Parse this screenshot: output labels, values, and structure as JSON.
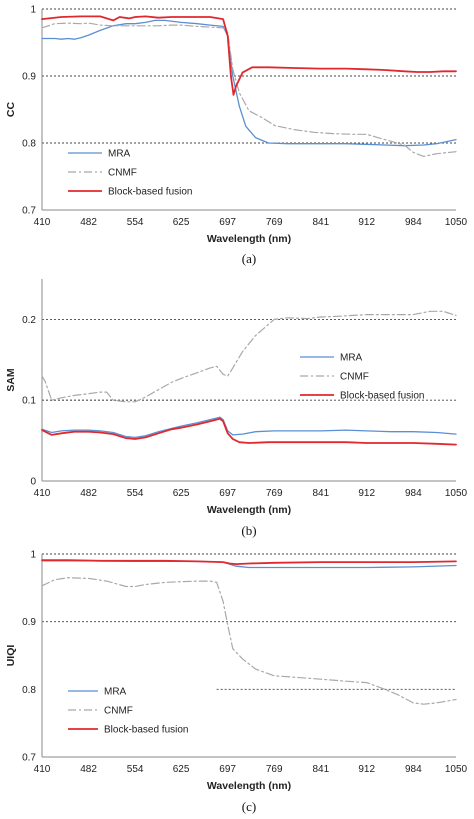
{
  "colors": {
    "mra": "#5b8fd4",
    "cnmf": "#a9a9a9",
    "block": "#e0282e",
    "grid": "#444444",
    "axis": "#888888"
  },
  "chart_data": [
    {
      "type": "line",
      "caption": "(a)",
      "ylabel": "CC",
      "xlabel": "Wavelength (nm)",
      "xlim": [
        410,
        1050
      ],
      "ylim": [
        0.7,
        1.0
      ],
      "xticks": [
        410,
        482,
        554,
        625,
        697,
        769,
        841,
        912,
        984,
        1050
      ],
      "yticks": [
        0.7,
        0.8,
        0.9,
        1.0
      ],
      "ytick_labels": [
        "0.7",
        "0.8",
        "0.9",
        "1"
      ],
      "grid_y": [
        0.8,
        0.9,
        1.0
      ],
      "legend": "lower-left",
      "series": [
        {
          "name": "MRA",
          "key": "mra",
          "dash": "",
          "width": 1.3,
          "x": [
            410,
            430,
            440,
            450,
            460,
            470,
            482,
            500,
            520,
            540,
            554,
            570,
            585,
            600,
            625,
            650,
            670,
            690,
            697,
            705,
            715,
            725,
            740,
            760,
            790,
            820,
            850,
            880,
            910,
            940,
            970,
            1000,
            1020,
            1050
          ],
          "y": [
            0.956,
            0.956,
            0.955,
            0.956,
            0.955,
            0.957,
            0.961,
            0.968,
            0.975,
            0.978,
            0.978,
            0.98,
            0.983,
            0.983,
            0.98,
            0.978,
            0.976,
            0.974,
            0.96,
            0.9,
            0.855,
            0.825,
            0.808,
            0.8,
            0.799,
            0.799,
            0.799,
            0.799,
            0.798,
            0.797,
            0.796,
            0.797,
            0.799,
            0.805
          ]
        },
        {
          "name": "CNMF",
          "key": "cnmf",
          "dash": "8,3,2,3",
          "width": 1.2,
          "x": [
            410,
            430,
            450,
            470,
            482,
            500,
            520,
            540,
            554,
            570,
            590,
            610,
            625,
            650,
            670,
            690,
            697,
            705,
            715,
            730,
            750,
            770,
            800,
            830,
            860,
            890,
            912,
            940,
            970,
            984,
            1000,
            1020,
            1050
          ],
          "y": [
            0.972,
            0.978,
            0.979,
            0.978,
            0.979,
            0.976,
            0.975,
            0.975,
            0.975,
            0.975,
            0.975,
            0.976,
            0.976,
            0.974,
            0.973,
            0.972,
            0.965,
            0.91,
            0.875,
            0.848,
            0.838,
            0.826,
            0.82,
            0.816,
            0.814,
            0.813,
            0.813,
            0.805,
            0.797,
            0.786,
            0.78,
            0.784,
            0.787
          ]
        },
        {
          "name": "Block-based  fusion",
          "key": "block",
          "dash": "",
          "width": 1.8,
          "x": [
            410,
            440,
            470,
            482,
            500,
            520,
            530,
            545,
            554,
            570,
            590,
            610,
            625,
            650,
            670,
            690,
            697,
            702,
            706,
            710,
            720,
            735,
            760,
            800,
            840,
            880,
            912,
            940,
            970,
            990,
            1010,
            1030,
            1050
          ],
          "y": [
            0.985,
            0.988,
            0.989,
            0.989,
            0.989,
            0.983,
            0.988,
            0.986,
            0.988,
            0.989,
            0.987,
            0.988,
            0.988,
            0.988,
            0.988,
            0.985,
            0.96,
            0.9,
            0.872,
            0.885,
            0.905,
            0.913,
            0.913,
            0.912,
            0.911,
            0.911,
            0.91,
            0.909,
            0.907,
            0.906,
            0.906,
            0.907,
            0.907
          ]
        }
      ]
    },
    {
      "type": "line",
      "caption": "(b)",
      "ylabel": "SAM",
      "xlabel": "Wavelength (nm)",
      "xlim": [
        410,
        1050
      ],
      "ylim": [
        0,
        0.25
      ],
      "xticks": [
        410,
        482,
        554,
        625,
        697,
        769,
        841,
        912,
        984,
        1050
      ],
      "yticks": [
        0,
        0.1,
        0.2
      ],
      "ytick_labels": [
        "0",
        "0.1",
        "0.2"
      ],
      "grid_y": [
        0.1,
        0.2
      ],
      "legend": "center-right",
      "series": [
        {
          "name": "MRA",
          "key": "mra",
          "dash": "",
          "width": 1.3,
          "x": [
            410,
            425,
            440,
            460,
            482,
            500,
            520,
            540,
            554,
            570,
            590,
            610,
            625,
            650,
            670,
            685,
            690,
            697,
            705,
            720,
            740,
            769,
            800,
            841,
            880,
            912,
            950,
            984,
            1020,
            1050
          ],
          "y": [
            0.064,
            0.06,
            0.062,
            0.063,
            0.063,
            0.062,
            0.06,
            0.055,
            0.054,
            0.056,
            0.061,
            0.065,
            0.068,
            0.072,
            0.076,
            0.079,
            0.076,
            0.062,
            0.057,
            0.058,
            0.061,
            0.062,
            0.062,
            0.062,
            0.063,
            0.062,
            0.061,
            0.061,
            0.06,
            0.058
          ]
        },
        {
          "name": "CNMF",
          "key": "cnmf",
          "dash": "8,3,2,3",
          "width": 1.2,
          "x": [
            410,
            415,
            425,
            440,
            460,
            482,
            500,
            510,
            520,
            540,
            554,
            570,
            590,
            610,
            625,
            650,
            670,
            680,
            690,
            697,
            705,
            720,
            740,
            769,
            790,
            820,
            841,
            870,
            912,
            950,
            984,
            1010,
            1030,
            1050
          ],
          "y": [
            0.13,
            0.123,
            0.1,
            0.103,
            0.106,
            0.108,
            0.11,
            0.11,
            0.1,
            0.098,
            0.098,
            0.104,
            0.113,
            0.122,
            0.127,
            0.134,
            0.14,
            0.142,
            0.132,
            0.13,
            0.14,
            0.16,
            0.18,
            0.2,
            0.202,
            0.201,
            0.203,
            0.204,
            0.206,
            0.206,
            0.206,
            0.21,
            0.21,
            0.205
          ]
        },
        {
          "name": "Block-based fusion",
          "key": "block",
          "dash": "",
          "width": 1.8,
          "x": [
            410,
            425,
            440,
            460,
            482,
            500,
            520,
            540,
            554,
            570,
            590,
            610,
            625,
            650,
            670,
            685,
            690,
            697,
            705,
            715,
            730,
            760,
            800,
            841,
            880,
            912,
            950,
            984,
            1020,
            1050
          ],
          "y": [
            0.063,
            0.057,
            0.059,
            0.061,
            0.061,
            0.06,
            0.058,
            0.053,
            0.052,
            0.054,
            0.059,
            0.064,
            0.066,
            0.07,
            0.074,
            0.077,
            0.074,
            0.059,
            0.052,
            0.048,
            0.047,
            0.048,
            0.048,
            0.048,
            0.048,
            0.047,
            0.047,
            0.047,
            0.046,
            0.045
          ]
        }
      ]
    },
    {
      "type": "line",
      "caption": "(c)",
      "ylabel": "UIQI",
      "xlabel": "Wavelength (nm)",
      "xlim": [
        410,
        1050
      ],
      "ylim": [
        0.7,
        1.0
      ],
      "xticks": [
        410,
        482,
        554,
        625,
        697,
        769,
        841,
        912,
        984,
        1050
      ],
      "yticks": [
        0.7,
        0.8,
        0.9,
        1.0
      ],
      "ytick_labels": [
        "0.7",
        "0.8",
        "0.9",
        "1"
      ],
      "grid_y": [
        0.9,
        1.0
      ],
      "legend": "lower-left",
      "series": [
        {
          "name": "MRA",
          "key": "mra",
          "dash": "",
          "width": 1.3,
          "x": [
            410,
            450,
            500,
            554,
            600,
            650,
            690,
            700,
            710,
            730,
            769,
            841,
            912,
            984,
            1050
          ],
          "y": [
            0.99,
            0.99,
            0.99,
            0.989,
            0.989,
            0.989,
            0.988,
            0.985,
            0.982,
            0.98,
            0.98,
            0.98,
            0.98,
            0.981,
            0.983
          ]
        },
        {
          "name": "CNMF",
          "key": "cnmf",
          "dash": "8,3,2,3",
          "width": 1.2,
          "x": [
            410,
            430,
            450,
            482,
            510,
            540,
            554,
            570,
            600,
            625,
            650,
            670,
            680,
            690,
            697,
            705,
            720,
            740,
            769,
            800,
            841,
            880,
            912,
            940,
            960,
            984,
            1000,
            1020,
            1050
          ],
          "y": [
            0.953,
            0.962,
            0.965,
            0.964,
            0.96,
            0.952,
            0.952,
            0.955,
            0.958,
            0.959,
            0.96,
            0.96,
            0.958,
            0.93,
            0.895,
            0.86,
            0.845,
            0.83,
            0.82,
            0.818,
            0.815,
            0.812,
            0.81,
            0.8,
            0.792,
            0.78,
            0.778,
            0.78,
            0.785
          ]
        },
        {
          "name": "Block-based fusion",
          "key": "block",
          "dash": "",
          "width": 1.8,
          "x": [
            410,
            450,
            500,
            554,
            600,
            650,
            690,
            700,
            710,
            730,
            769,
            841,
            912,
            984,
            1050
          ],
          "y": [
            0.991,
            0.991,
            0.99,
            0.99,
            0.99,
            0.989,
            0.988,
            0.986,
            0.985,
            0.986,
            0.987,
            0.988,
            0.988,
            0.988,
            0.989
          ]
        }
      ]
    }
  ]
}
